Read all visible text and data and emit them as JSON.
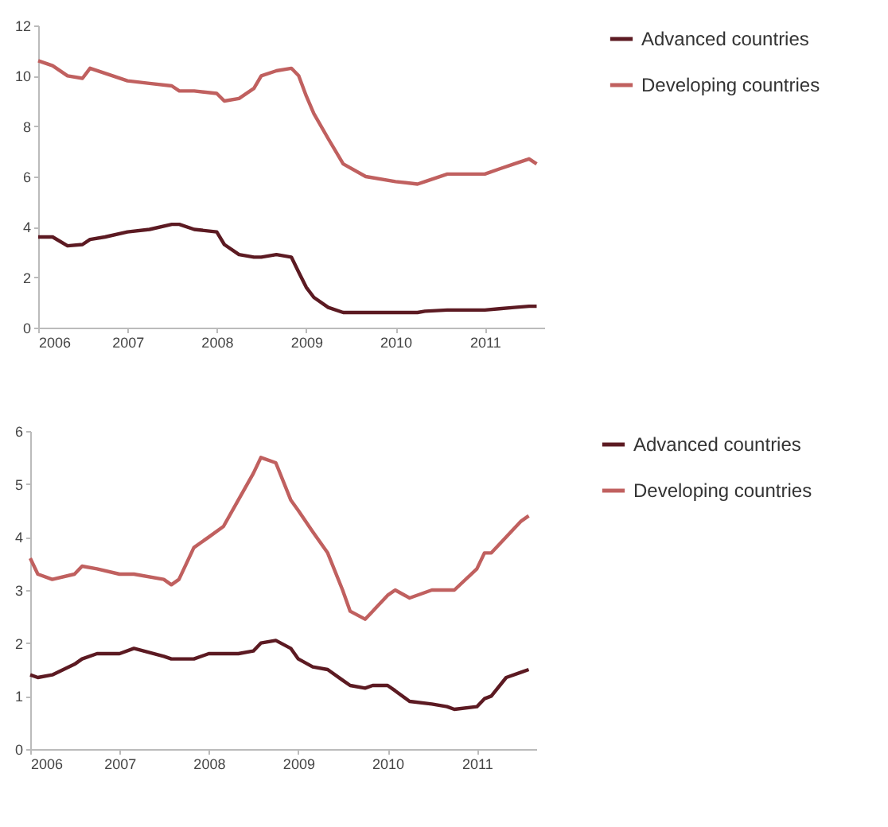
{
  "chart_data": [
    {
      "type": "line",
      "x": [
        "2006-01",
        "2006-03",
        "2006-05",
        "2006-07",
        "2006-08",
        "2006-10",
        "2007-01",
        "2007-04",
        "2007-07",
        "2007-08",
        "2007-10",
        "2008-01",
        "2008-02",
        "2008-04",
        "2008-06",
        "2008-07",
        "2008-09",
        "2008-11",
        "2008-12",
        "2009-01",
        "2009-02",
        "2009-04",
        "2009-06",
        "2009-09",
        "2010-01",
        "2010-04",
        "2010-05",
        "2010-08",
        "2010-10",
        "2011-01",
        "2011-03",
        "2011-05",
        "2011-07",
        "2011-08"
      ],
      "series": [
        {
          "name": "Advanced countries",
          "color": "#5c1a22",
          "values": [
            3.6,
            3.6,
            3.25,
            3.3,
            3.5,
            3.6,
            3.8,
            3.9,
            4.1,
            4.1,
            3.9,
            3.8,
            3.3,
            2.9,
            2.8,
            2.8,
            2.9,
            2.8,
            2.2,
            1.6,
            1.2,
            0.8,
            0.6,
            0.6,
            0.6,
            0.6,
            0.65,
            0.7,
            0.7,
            0.7,
            0.75,
            0.8,
            0.85,
            0.85
          ]
        },
        {
          "name": "Developing countries",
          "color": "#c0605f",
          "values": [
            10.6,
            10.4,
            10.0,
            9.9,
            10.3,
            10.1,
            9.8,
            9.7,
            9.6,
            9.4,
            9.4,
            9.3,
            9.0,
            9.1,
            9.5,
            10.0,
            10.2,
            10.3,
            10.0,
            9.2,
            8.5,
            7.5,
            6.5,
            6.0,
            5.8,
            5.7,
            5.8,
            6.1,
            6.1,
            6.1,
            6.3,
            6.5,
            6.7,
            6.5
          ]
        }
      ],
      "xlim": [
        "2006-01",
        "2011-09"
      ],
      "xticks": [
        {
          "value": "2006-01",
          "label": "2006"
        },
        {
          "value": "2007-01",
          "label": "2007"
        },
        {
          "value": "2008-01",
          "label": "2008"
        },
        {
          "value": "2009-01",
          "label": "2009"
        },
        {
          "value": "2010-01",
          "label": "2010"
        },
        {
          "value": "2011-01",
          "label": "2011"
        }
      ],
      "ylim": [
        0,
        12
      ],
      "yticks": [
        0,
        2,
        4,
        6,
        8,
        10,
        12
      ],
      "grid": false,
      "legend": "right"
    },
    {
      "type": "line",
      "x": [
        "2006-01",
        "2006-02",
        "2006-04",
        "2006-07",
        "2006-08",
        "2006-10",
        "2007-01",
        "2007-03",
        "2007-07",
        "2007-08",
        "2007-09",
        "2007-11",
        "2008-01",
        "2008-03",
        "2008-05",
        "2008-07",
        "2008-08",
        "2008-10",
        "2008-12",
        "2009-01",
        "2009-03",
        "2009-05",
        "2009-07",
        "2009-08",
        "2009-10",
        "2009-11",
        "2010-01",
        "2010-02",
        "2010-04",
        "2010-07",
        "2010-09",
        "2010-10",
        "2011-01",
        "2011-02",
        "2011-03",
        "2011-05",
        "2011-07",
        "2011-08"
      ],
      "series": [
        {
          "name": "Advanced countries",
          "color": "#5c1a22",
          "values": [
            1.4,
            1.35,
            1.4,
            1.6,
            1.7,
            1.8,
            1.8,
            1.9,
            1.75,
            1.7,
            1.7,
            1.7,
            1.8,
            1.8,
            1.8,
            1.85,
            2.0,
            2.05,
            1.9,
            1.7,
            1.55,
            1.5,
            1.3,
            1.2,
            1.15,
            1.2,
            1.2,
            1.1,
            0.9,
            0.85,
            0.8,
            0.75,
            0.8,
            0.95,
            1.0,
            1.35,
            1.45,
            1.5
          ]
        },
        {
          "name": "Developing countries",
          "color": "#c0605f",
          "values": [
            3.6,
            3.3,
            3.2,
            3.3,
            3.45,
            3.4,
            3.3,
            3.3,
            3.2,
            3.1,
            3.2,
            3.8,
            4.0,
            4.2,
            4.7,
            5.2,
            5.5,
            5.4,
            4.7,
            4.5,
            4.1,
            3.7,
            3.0,
            2.6,
            2.45,
            2.6,
            2.9,
            3.0,
            2.85,
            3.0,
            3.0,
            3.0,
            3.4,
            3.7,
            3.7,
            4.0,
            4.3,
            4.4
          ]
        }
      ],
      "xlim": [
        "2006-01",
        "2011-09"
      ],
      "xticks": [
        {
          "value": "2006-01",
          "label": "2006"
        },
        {
          "value": "2007-01",
          "label": "2007"
        },
        {
          "value": "2008-01",
          "label": "2008"
        },
        {
          "value": "2009-01",
          "label": "2009"
        },
        {
          "value": "2010-01",
          "label": "2010"
        },
        {
          "value": "2011-01",
          "label": "2011"
        }
      ],
      "ylim": [
        0,
        6
      ],
      "yticks": [
        0,
        1,
        2,
        3,
        4,
        5,
        6
      ],
      "grid": false,
      "legend": "right"
    }
  ]
}
